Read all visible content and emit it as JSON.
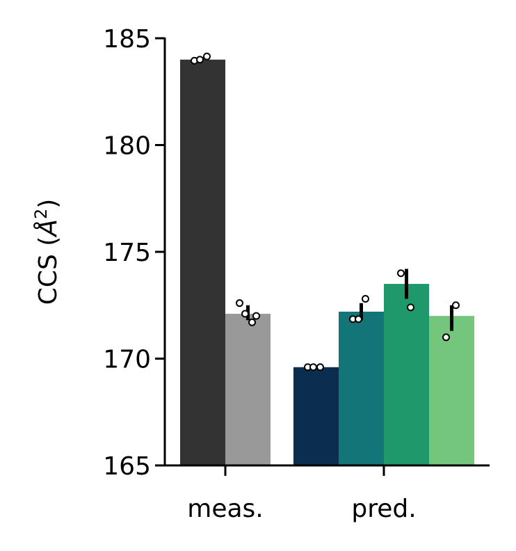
{
  "chart_data": {
    "type": "bar",
    "title": "",
    "xlabel": "",
    "ylabel": "CCS (Å²)",
    "ylabel_main": "CCS (",
    "ylabel_unit": "Å",
    "ylabel_exp": "2",
    "ylabel_close": ")",
    "ylim": [
      165,
      185
    ],
    "yticks": [
      "165",
      "170",
      "175",
      "180",
      "185"
    ],
    "categories": [
      "meas.",
      "pred."
    ],
    "grid": false,
    "legend": "none",
    "groups": [
      {
        "category": "meas.",
        "bars": [
          {
            "value": 184.0,
            "color": "#333333",
            "err": [
              184.0,
              184.1
            ],
            "points": [
              183.95,
              184.0,
              184.15
            ]
          },
          {
            "value": 172.1,
            "color": "#999999",
            "err": [
              171.8,
              172.5
            ],
            "points": [
              172.6,
              172.1,
              171.7,
              172.0
            ]
          }
        ]
      },
      {
        "category": "pred.",
        "bars": [
          {
            "value": 169.6,
            "color": "#0b2e4f",
            "err": [
              169.6,
              169.6
            ],
            "points": [
              169.6,
              169.6,
              169.6
            ]
          },
          {
            "value": 172.2,
            "color": "#137577",
            "err": [
              171.8,
              172.6
            ],
            "points": [
              171.85,
              171.85,
              172.8
            ]
          },
          {
            "value": 173.5,
            "color": "#1f996c",
            "err": [
              172.8,
              174.2
            ],
            "points": [
              174.0,
              172.4
            ]
          },
          {
            "value": 172.0,
            "color": "#74c67c",
            "err": [
              171.3,
              172.5
            ],
            "points": [
              171.0,
              172.5
            ]
          }
        ]
      }
    ]
  }
}
